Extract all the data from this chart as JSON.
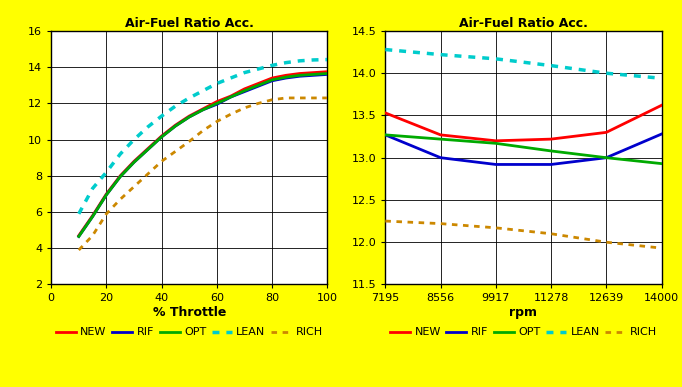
{
  "title": "Air-Fuel Ratio Acc.",
  "background_color": "#FFFF00",
  "plot_bg_color": "#FFFFFF",
  "left_chart": {
    "xlabel": "% Throttle",
    "xlim": [
      0,
      100
    ],
    "ylim": [
      2,
      16
    ],
    "xticks": [
      0,
      20,
      40,
      60,
      80,
      100
    ],
    "yticks": [
      2,
      4,
      6,
      8,
      10,
      12,
      14,
      16
    ],
    "throttle_x": [
      10,
      15,
      20,
      25,
      30,
      35,
      40,
      45,
      50,
      55,
      60,
      65,
      70,
      75,
      80,
      85,
      90,
      95,
      100
    ],
    "NEW": [
      4.7,
      5.8,
      7.0,
      8.0,
      8.8,
      9.5,
      10.2,
      10.8,
      11.3,
      11.7,
      12.1,
      12.4,
      12.8,
      13.1,
      13.4,
      13.55,
      13.65,
      13.7,
      13.75
    ],
    "RIF": [
      4.65,
      5.75,
      6.95,
      7.95,
      8.75,
      9.45,
      10.15,
      10.75,
      11.25,
      11.65,
      11.95,
      12.35,
      12.65,
      12.95,
      13.25,
      13.4,
      13.5,
      13.55,
      13.6
    ],
    "OPT": [
      4.65,
      5.75,
      6.95,
      7.95,
      8.75,
      9.45,
      10.15,
      10.75,
      11.25,
      11.65,
      12.0,
      12.35,
      12.7,
      13.0,
      13.3,
      13.45,
      13.55,
      13.6,
      13.65
    ],
    "LEAN": [
      5.9,
      7.3,
      8.2,
      9.2,
      10.0,
      10.7,
      11.3,
      11.85,
      12.3,
      12.7,
      13.1,
      13.4,
      13.7,
      13.9,
      14.1,
      14.25,
      14.35,
      14.4,
      14.42
    ],
    "RICH": [
      3.9,
      4.7,
      5.9,
      6.7,
      7.4,
      8.1,
      8.8,
      9.35,
      9.9,
      10.5,
      11.0,
      11.4,
      11.75,
      12.0,
      12.2,
      12.3,
      12.3,
      12.3,
      12.3
    ]
  },
  "right_chart": {
    "xlabel": "rpm",
    "xlim": [
      7195,
      14000
    ],
    "ylim": [
      11.5,
      14.5
    ],
    "xticks": [
      7195,
      8556,
      9917,
      11278,
      12639,
      14000
    ],
    "yticks": [
      11.5,
      12.0,
      12.5,
      13.0,
      13.5,
      14.0,
      14.5
    ],
    "rpm_x": [
      7195,
      8556,
      9917,
      11278,
      12639,
      14000
    ],
    "NEW": [
      13.53,
      13.27,
      13.2,
      13.22,
      13.3,
      13.62
    ],
    "RIF": [
      13.27,
      13.0,
      12.92,
      12.92,
      13.0,
      13.28
    ],
    "OPT": [
      13.27,
      13.22,
      13.17,
      13.08,
      13.0,
      12.93
    ],
    "LEAN": [
      14.28,
      14.22,
      14.17,
      14.09,
      14.0,
      13.94
    ],
    "RICH": [
      12.25,
      12.22,
      12.17,
      12.1,
      12.0,
      11.93
    ]
  },
  "series": [
    {
      "name": "NEW",
      "color": "#FF0000",
      "linestyle": "solid",
      "linewidth": 2.0
    },
    {
      "name": "RIF",
      "color": "#0000CC",
      "linestyle": "solid",
      "linewidth": 2.0
    },
    {
      "name": "OPT",
      "color": "#00AA00",
      "linestyle": "solid",
      "linewidth": 2.0
    },
    {
      "name": "LEAN",
      "color": "#00CCCC",
      "linestyle": "dotted",
      "linewidth": 2.5
    },
    {
      "name": "RICH",
      "color": "#CC8800",
      "linestyle": "dotted",
      "linewidth": 2.0
    }
  ]
}
